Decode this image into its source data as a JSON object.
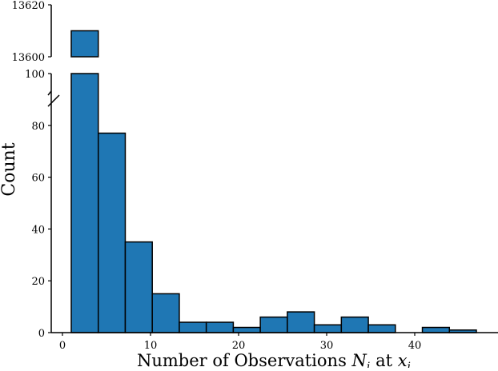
{
  "chart_data": {
    "type": "bar",
    "subtype": "histogram with broken y-axis",
    "xlabel": "Number of Observations N_i at x_i",
    "xlabel_parts": {
      "main": "Number of Observations ",
      "n": "N",
      "n_sub": "i",
      "at": " at ",
      "x": "x",
      "x_sub": "i"
    },
    "ylabel": "Count",
    "bin_edges": [
      1,
      4.067,
      7.133,
      10.2,
      13.267,
      16.333,
      19.4,
      22.467,
      25.533,
      28.6,
      31.667,
      34.733,
      37.8,
      40.867,
      43.933,
      47
    ],
    "values": [
      13610,
      77,
      35,
      15,
      4,
      4,
      2,
      6,
      8,
      3,
      6,
      3,
      0,
      2,
      1
    ],
    "xlim": [
      -2,
      50
    ],
    "xticks": [
      0,
      10,
      20,
      30,
      40
    ],
    "ylim_lower": [
      0,
      100
    ],
    "yticks_lower": [
      0,
      20,
      40,
      60,
      80,
      100
    ],
    "ylim_upper": [
      13600,
      13620
    ],
    "yticks_upper": [
      13600,
      13620
    ],
    "bar_color": "#1f77b4",
    "edge_color": "#000000",
    "grid": false,
    "legend": "none"
  }
}
